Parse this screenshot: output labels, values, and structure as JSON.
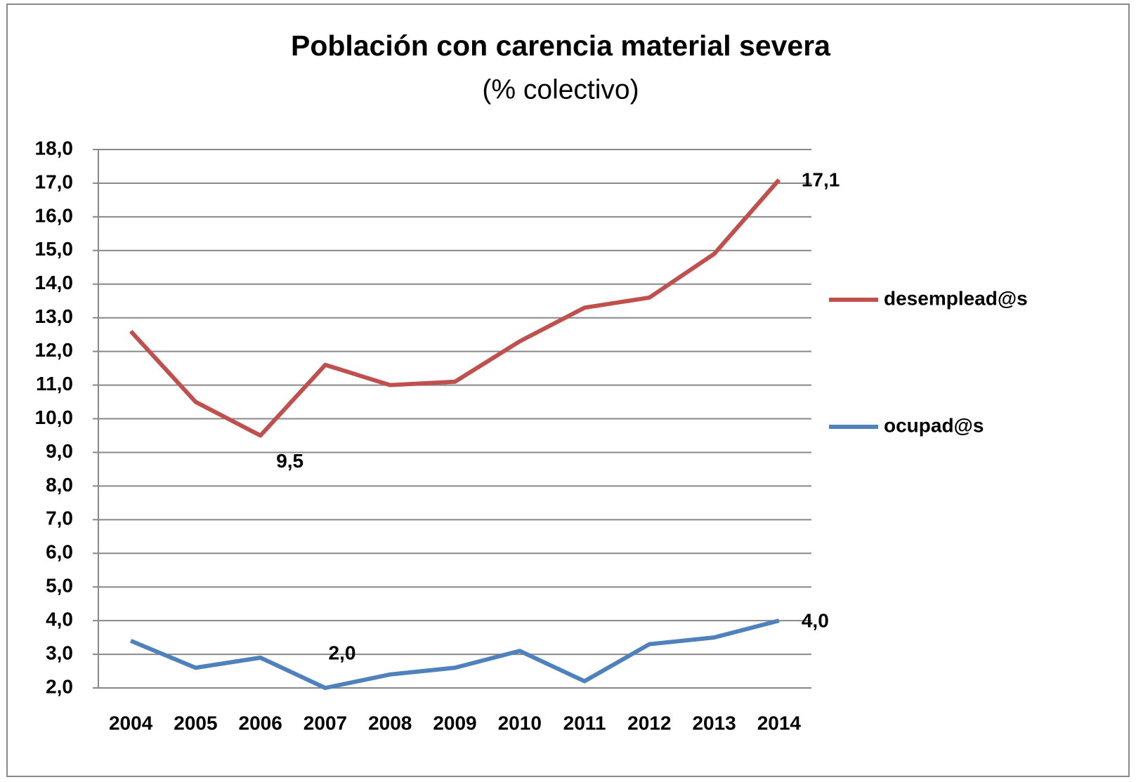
{
  "chart_data": {
    "type": "line",
    "title": "Población con carencia material severa",
    "subtitle": "(% colectivo)",
    "categories": [
      "2004",
      "2005",
      "2006",
      "2007",
      "2008",
      "2009",
      "2010",
      "2011",
      "2012",
      "2013",
      "2014"
    ],
    "series": [
      {
        "name": "desemplead@s",
        "color": "#c0504d",
        "values": [
          12.6,
          10.5,
          9.5,
          11.6,
          11.0,
          11.1,
          12.3,
          13.3,
          13.6,
          14.9,
          17.1
        ],
        "value_labels": [
          null,
          null,
          "9,5",
          null,
          null,
          null,
          null,
          null,
          null,
          null,
          "17,1"
        ]
      },
      {
        "name": "ocupad@s",
        "color": "#4f81bd",
        "values": [
          3.4,
          2.6,
          2.9,
          2.0,
          2.4,
          2.6,
          3.1,
          2.2,
          3.3,
          3.5,
          4.0
        ],
        "value_labels": [
          null,
          null,
          null,
          "2,0",
          null,
          null,
          null,
          null,
          null,
          null,
          "4,0"
        ]
      }
    ],
    "ylim": [
      2,
      18
    ],
    "yticks": [
      {
        "value": 2,
        "label": "2,0"
      },
      {
        "value": 3,
        "label": "3,0"
      },
      {
        "value": 4,
        "label": "4,0"
      },
      {
        "value": 5,
        "label": "5,0"
      },
      {
        "value": 6,
        "label": "6,0"
      },
      {
        "value": 7,
        "label": "7,0"
      },
      {
        "value": 8,
        "label": "8,0"
      },
      {
        "value": 9,
        "label": "9,0"
      },
      {
        "value": 10,
        "label": "10,0"
      },
      {
        "value": 11,
        "label": "11,0"
      },
      {
        "value": 12,
        "label": "12,0"
      },
      {
        "value": 13,
        "label": "13,0"
      },
      {
        "value": 14,
        "label": "14,0"
      },
      {
        "value": 15,
        "label": "15,0"
      },
      {
        "value": 16,
        "label": "16,0"
      },
      {
        "value": 17,
        "label": "17,0"
      },
      {
        "value": 18,
        "label": "18,0"
      }
    ],
    "grid": true,
    "legend": "right"
  }
}
